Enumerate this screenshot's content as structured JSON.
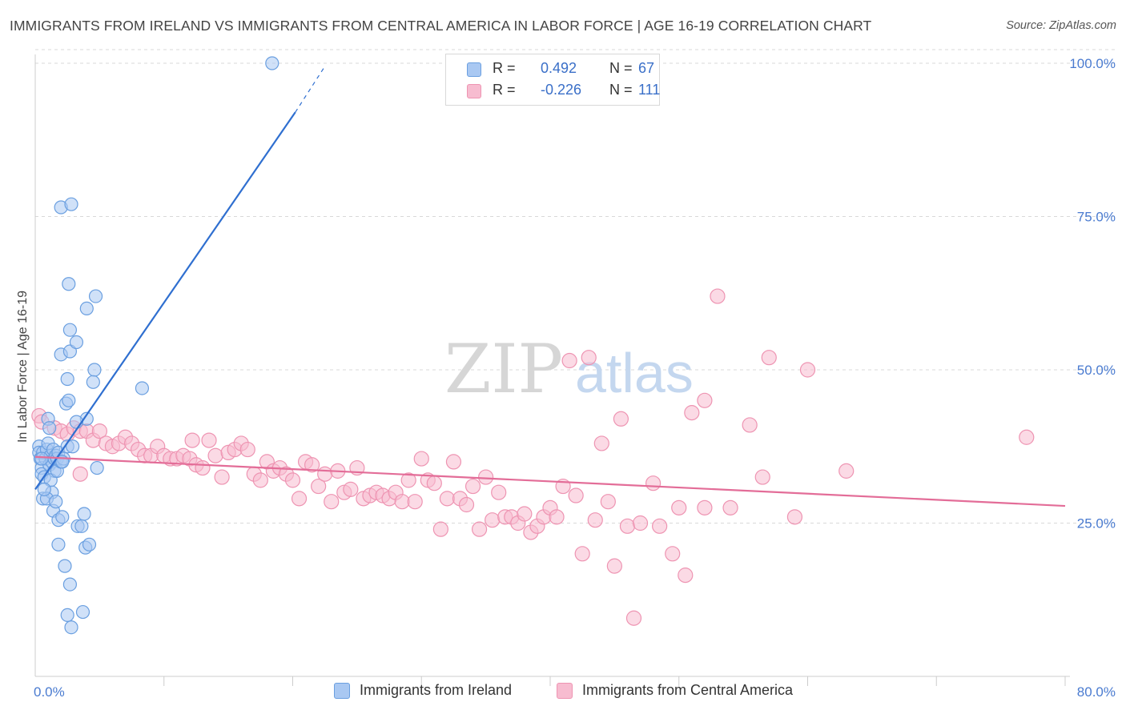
{
  "title": "IMMIGRANTS FROM IRELAND VS IMMIGRANTS FROM CENTRAL AMERICA IN LABOR FORCE | AGE 16-19 CORRELATION CHART",
  "source": "Source: ZipAtlas.com",
  "watermark": {
    "zip": "ZIP",
    "atlas": "atlas"
  },
  "colors": {
    "blue_fill": "#a9c8f2",
    "blue_stroke": "#6a9fe0",
    "blue_line": "#2f6fd0",
    "pink_fill": "#f7bcd0",
    "pink_stroke": "#ee94b2",
    "pink_line": "#e36d98",
    "axis_text": "#4a7bd0",
    "grid": "#d9d9d9"
  },
  "legend": {
    "rows": [
      {
        "r_label": "R =",
        "r_value": "0.492",
        "n_label": "N =",
        "n_value": "67"
      },
      {
        "r_label": "R =",
        "r_value": "-0.226",
        "n_label": "N =",
        "n_value": "111"
      }
    ]
  },
  "bottom_legend": {
    "ireland": "Immigrants from Ireland",
    "central_america": "Immigrants from Central America"
  },
  "chart_data": {
    "type": "scatter",
    "title": "IMMIGRANTS FROM IRELAND VS IMMIGRANTS FROM CENTRAL AMERICA IN LABOR FORCE | AGE 16-19 CORRELATION CHART",
    "xlabel": "",
    "ylabel": "In Labor Force | Age 16-19",
    "xlim": [
      0,
      80
    ],
    "ylim": [
      0,
      105
    ],
    "x_tick_labels": [
      "0.0%",
      "80.0%"
    ],
    "y_ticks": [
      25,
      50,
      75,
      100
    ],
    "y_tick_labels": [
      "25.0%",
      "50.0%",
      "75.0%",
      "100.0%"
    ],
    "series": [
      {
        "name": "Immigrants from Ireland",
        "R": 0.492,
        "N": 67,
        "trend": {
          "x_start": 0.0,
          "y_start": 30.5,
          "x_end": 20.2,
          "y_end": 92.0,
          "dashed_to_x": 22.5,
          "dashed_to_y": 99.5
        },
        "points": [
          [
            0.3,
            37.5
          ],
          [
            0.3,
            36.5
          ],
          [
            0.4,
            35.5
          ],
          [
            0.5,
            34.0
          ],
          [
            0.6,
            36.5
          ],
          [
            0.5,
            33.0
          ],
          [
            0.7,
            32.5
          ],
          [
            0.6,
            29.0
          ],
          [
            0.8,
            35.5
          ],
          [
            0.9,
            37.0
          ],
          [
            1.0,
            38.0
          ],
          [
            1.1,
            34.5
          ],
          [
            1.2,
            36.0
          ],
          [
            1.3,
            35.0
          ],
          [
            1.4,
            37.0
          ],
          [
            1.5,
            35.5
          ],
          [
            1.6,
            36.0
          ],
          [
            1.7,
            35.5
          ],
          [
            1.8,
            36.5
          ],
          [
            1.5,
            33.5
          ],
          [
            1.2,
            32.0
          ],
          [
            1.3,
            30.0
          ],
          [
            0.9,
            29.0
          ],
          [
            1.4,
            27.0
          ],
          [
            1.7,
            33.5
          ],
          [
            2.0,
            35.0
          ],
          [
            2.2,
            35.5
          ],
          [
            2.5,
            37.5
          ],
          [
            1.6,
            28.5
          ],
          [
            1.8,
            25.5
          ],
          [
            2.1,
            26.0
          ],
          [
            2.3,
            18.0
          ],
          [
            1.8,
            21.5
          ],
          [
            2.7,
            15.0
          ],
          [
            2.5,
            10.0
          ],
          [
            2.8,
            8.0
          ],
          [
            3.7,
            10.5
          ],
          [
            3.3,
            24.5
          ],
          [
            3.6,
            24.5
          ],
          [
            3.8,
            26.5
          ],
          [
            3.9,
            21.0
          ],
          [
            4.2,
            21.5
          ],
          [
            4.0,
            42.0
          ],
          [
            4.8,
            34.0
          ],
          [
            4.6,
            50.0
          ],
          [
            4.5,
            48.0
          ],
          [
            3.2,
            41.5
          ],
          [
            2.4,
            44.5
          ],
          [
            2.6,
            45.0
          ],
          [
            2.5,
            48.5
          ],
          [
            2.0,
            52.5
          ],
          [
            2.7,
            53.0
          ],
          [
            3.2,
            54.5
          ],
          [
            2.7,
            56.5
          ],
          [
            2.0,
            76.5
          ],
          [
            2.8,
            77.0
          ],
          [
            2.6,
            64.0
          ],
          [
            4.0,
            60.0
          ],
          [
            4.7,
            62.0
          ],
          [
            8.3,
            47.0
          ],
          [
            18.4,
            100.0
          ],
          [
            1.0,
            42.0
          ],
          [
            1.1,
            40.5
          ],
          [
            0.7,
            30.5
          ],
          [
            2.1,
            35.0
          ],
          [
            0.5,
            35.5
          ],
          [
            2.9,
            37.5
          ]
        ]
      },
      {
        "name": "Immigrants from Central America",
        "R": -0.226,
        "N": 111,
        "trend": {
          "x_start": 0.0,
          "y_start": 35.8,
          "x_end": 80.0,
          "y_end": 27.8
        },
        "points": [
          [
            0.3,
            42.5
          ],
          [
            0.5,
            41.5
          ],
          [
            1.5,
            40.5
          ],
          [
            2.0,
            40.0
          ],
          [
            2.5,
            39.5
          ],
          [
            3.0,
            40.5
          ],
          [
            3.5,
            40.0
          ],
          [
            4.0,
            40.0
          ],
          [
            4.5,
            38.5
          ],
          [
            5.0,
            40.0
          ],
          [
            5.5,
            38.0
          ],
          [
            6.0,
            37.5
          ],
          [
            6.5,
            38.0
          ],
          [
            7.0,
            39.0
          ],
          [
            7.5,
            38.0
          ],
          [
            8.0,
            37.0
          ],
          [
            8.5,
            36.0
          ],
          [
            9.0,
            36.0
          ],
          [
            9.5,
            37.5
          ],
          [
            10.0,
            36.0
          ],
          [
            10.5,
            35.5
          ],
          [
            11.0,
            35.5
          ],
          [
            11.5,
            36.0
          ],
          [
            12.0,
            35.5
          ],
          [
            12.2,
            38.5
          ],
          [
            12.5,
            34.5
          ],
          [
            13.0,
            34.0
          ],
          [
            13.5,
            38.5
          ],
          [
            14.0,
            36.0
          ],
          [
            14.5,
            32.5
          ],
          [
            15.0,
            36.5
          ],
          [
            15.5,
            37.0
          ],
          [
            16.0,
            38.0
          ],
          [
            16.5,
            37.0
          ],
          [
            17.0,
            33.0
          ],
          [
            17.5,
            32.0
          ],
          [
            18.0,
            35.0
          ],
          [
            18.5,
            33.5
          ],
          [
            19.0,
            34.0
          ],
          [
            19.5,
            33.0
          ],
          [
            20.0,
            32.0
          ],
          [
            20.5,
            29.0
          ],
          [
            21.0,
            35.0
          ],
          [
            21.5,
            34.5
          ],
          [
            22.0,
            31.0
          ],
          [
            22.5,
            33.0
          ],
          [
            23.0,
            28.5
          ],
          [
            23.5,
            33.5
          ],
          [
            24.0,
            30.0
          ],
          [
            24.5,
            30.5
          ],
          [
            25.0,
            34.0
          ],
          [
            25.5,
            29.0
          ],
          [
            26.0,
            29.5
          ],
          [
            26.5,
            30.0
          ],
          [
            27.0,
            29.5
          ],
          [
            27.5,
            29.0
          ],
          [
            28.0,
            30.0
          ],
          [
            28.5,
            28.5
          ],
          [
            29.0,
            32.0
          ],
          [
            29.5,
            28.5
          ],
          [
            30.0,
            35.5
          ],
          [
            30.5,
            32.0
          ],
          [
            31.0,
            31.5
          ],
          [
            31.5,
            24.0
          ],
          [
            32.0,
            29.0
          ],
          [
            32.5,
            35.0
          ],
          [
            33.0,
            29.0
          ],
          [
            33.5,
            28.0
          ],
          [
            34.0,
            31.0
          ],
          [
            34.5,
            24.0
          ],
          [
            35.0,
            32.5
          ],
          [
            35.5,
            25.5
          ],
          [
            36.0,
            30.0
          ],
          [
            36.5,
            26.0
          ],
          [
            37.0,
            26.0
          ],
          [
            37.5,
            25.0
          ],
          [
            38.0,
            26.5
          ],
          [
            38.5,
            23.5
          ],
          [
            39.0,
            24.5
          ],
          [
            39.5,
            26.0
          ],
          [
            40.0,
            27.5
          ],
          [
            40.5,
            26.0
          ],
          [
            41.0,
            31.0
          ],
          [
            41.5,
            51.5
          ],
          [
            42.0,
            29.5
          ],
          [
            42.5,
            20.0
          ],
          [
            43.0,
            52.0
          ],
          [
            43.5,
            25.5
          ],
          [
            44.0,
            38.0
          ],
          [
            44.5,
            28.5
          ],
          [
            45.0,
            18.0
          ],
          [
            45.5,
            42.0
          ],
          [
            46.0,
            24.5
          ],
          [
            46.5,
            9.5
          ],
          [
            47.0,
            25.0
          ],
          [
            48.0,
            31.5
          ],
          [
            48.5,
            24.5
          ],
          [
            49.5,
            20.0
          ],
          [
            50.0,
            27.5
          ],
          [
            50.5,
            16.5
          ],
          [
            51.0,
            43.0
          ],
          [
            52.0,
            45.0
          ],
          [
            52.0,
            27.5
          ],
          [
            53.0,
            62.0
          ],
          [
            54.0,
            27.5
          ],
          [
            55.5,
            41.0
          ],
          [
            56.5,
            32.5
          ],
          [
            57.0,
            52.0
          ],
          [
            59.0,
            26.0
          ],
          [
            60.0,
            50.0
          ],
          [
            63.0,
            33.5
          ],
          [
            77.0,
            39.0
          ],
          [
            3.5,
            33.0
          ]
        ]
      }
    ]
  }
}
